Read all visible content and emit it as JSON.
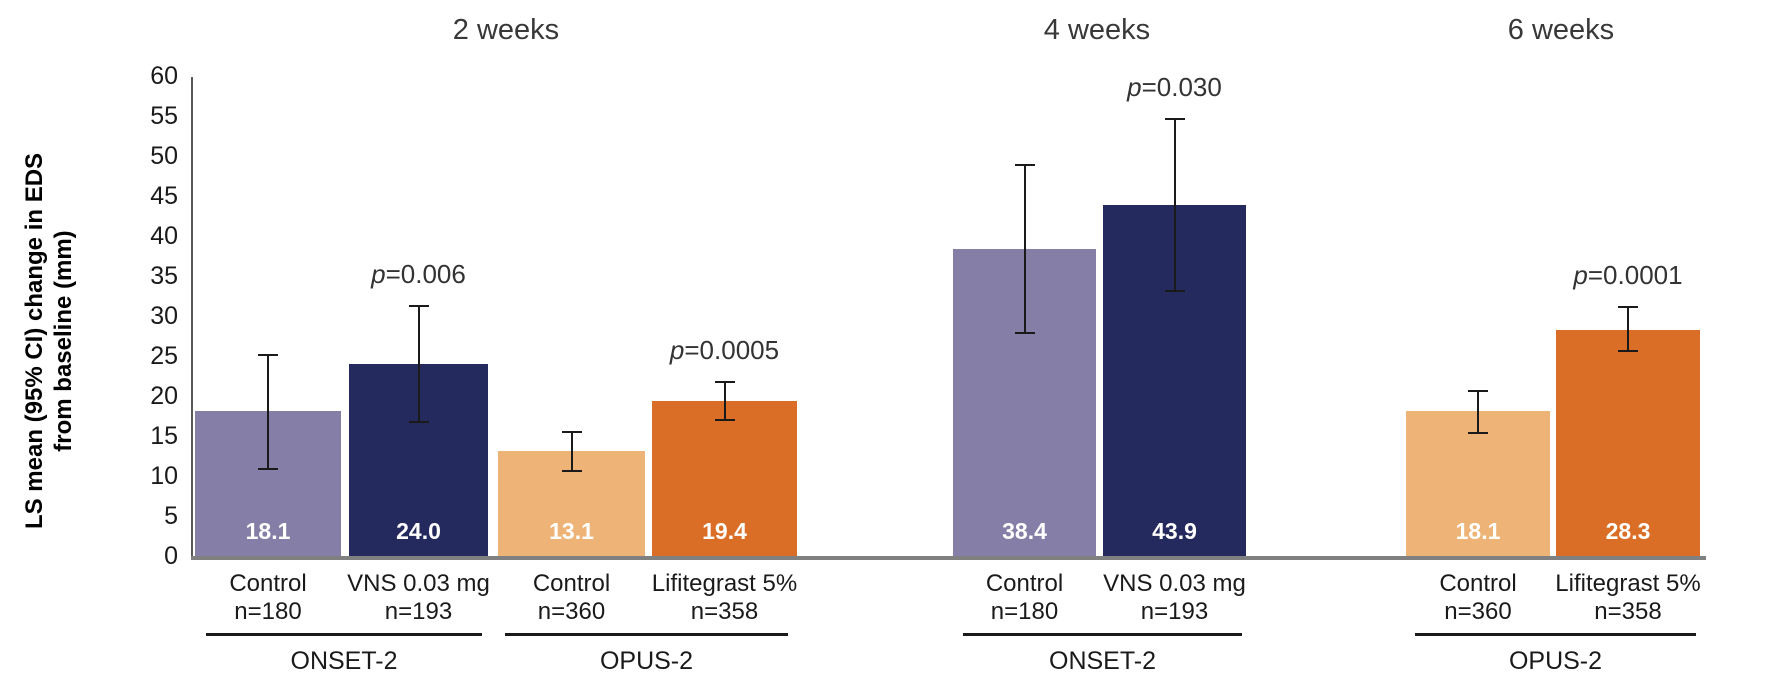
{
  "chart_data": {
    "type": "bar",
    "title": "",
    "yaxis": {
      "label_line1": "LS mean (95% CI) change in EDS",
      "label_line2": "from baseline (mm)",
      "min": 0,
      "max": 60,
      "tick_step": 5
    },
    "grid": false,
    "legend": "none",
    "groups": [
      {
        "title": "2 weeks",
        "studies": [
          {
            "name": "ONSET-2",
            "bars": [
              {
                "label": "Control",
                "n": "n=180",
                "value": 18.1,
                "value_label": "18.1",
                "ci_low": 10.8,
                "ci_high": 25.3,
                "color": "#857FA7"
              },
              {
                "label": "VNS 0.03 mg",
                "n": "n=193",
                "value": 24.0,
                "value_label": "24.0",
                "ci_low": 16.6,
                "ci_high": 31.4,
                "color": "#252A5E",
                "p_label": "p=0.006"
              }
            ]
          },
          {
            "name": "OPUS-2",
            "bars": [
              {
                "label": "Control",
                "n": "n=360",
                "value": 13.1,
                "value_label": "13.1",
                "ci_low": 10.5,
                "ci_high": 15.6,
                "color": "#EEB377"
              },
              {
                "label": "Lifitegrast 5%",
                "n": "n=358",
                "value": 19.4,
                "value_label": "19.4",
                "ci_low": 16.9,
                "ci_high": 21.9,
                "color": "#DB6E27",
                "p_label": "p=0.0005"
              }
            ]
          }
        ]
      },
      {
        "title": "4 weeks",
        "studies": [
          {
            "name": "ONSET-2",
            "bars": [
              {
                "label": "Control",
                "n": "n=180",
                "value": 38.4,
                "value_label": "38.4",
                "ci_low": 27.8,
                "ci_high": 49.0,
                "color": "#857FA7"
              },
              {
                "label": "VNS 0.03 mg",
                "n": "n=193",
                "value": 43.9,
                "value_label": "43.9",
                "ci_low": 33.0,
                "ci_high": 54.8,
                "color": "#252A5E",
                "p_label": "p=0.030"
              }
            ]
          }
        ]
      },
      {
        "title": "6 weeks",
        "studies": [
          {
            "name": "OPUS-2",
            "bars": [
              {
                "label": "Control",
                "n": "n=360",
                "value": 18.1,
                "value_label": "18.1",
                "ci_low": 15.2,
                "ci_high": 20.8,
                "color": "#EEB377"
              },
              {
                "label": "Lifitegrast 5%",
                "n": "n=358",
                "value": 28.3,
                "value_label": "28.3",
                "ci_low": 25.5,
                "ci_high": 31.2,
                "color": "#DB6E27",
                "p_label": "p=0.0001"
              }
            ]
          }
        ]
      }
    ],
    "colors": {
      "control_onset": "#857FA7",
      "vns_bar": "#252A5E",
      "control_opus": "#EEB377",
      "lifitegrast_bar": "#DB6E27",
      "baseline_gray": "#808080",
      "axis_gray": "#595959",
      "in_bar_value_text": "#FFFFFF"
    }
  }
}
